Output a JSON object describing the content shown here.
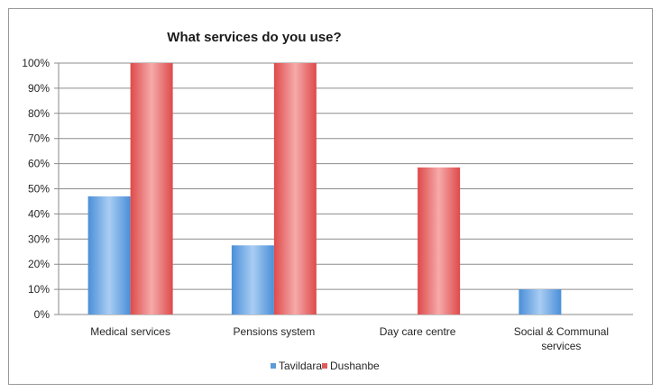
{
  "chart_data": {
    "type": "bar",
    "title": "What services do you use?",
    "xlabel": "",
    "ylabel": "",
    "categories": [
      "Medical services",
      "Pensions system",
      "Day care centre",
      "Social & Communal services"
    ],
    "category_lines": [
      [
        "Medical services"
      ],
      [
        "Pensions system"
      ],
      [
        "Day care centre"
      ],
      [
        "Social & Communal",
        "services"
      ]
    ],
    "series": [
      {
        "name": "Tavildara",
        "values": [
          0.47,
          0.275,
          0,
          0.1
        ],
        "color": "#5b9bd5"
      },
      {
        "name": "Dushanbe",
        "values": [
          1.0,
          1.0,
          0.585,
          0
        ],
        "color": "#e05a5a"
      }
    ],
    "ylim": [
      0,
      1
    ],
    "yticks": [
      "0%",
      "10%",
      "20%",
      "30%",
      "40%",
      "50%",
      "60%",
      "70%",
      "80%",
      "90%",
      "100%"
    ],
    "grid": true,
    "legend_position": "bottom"
  }
}
